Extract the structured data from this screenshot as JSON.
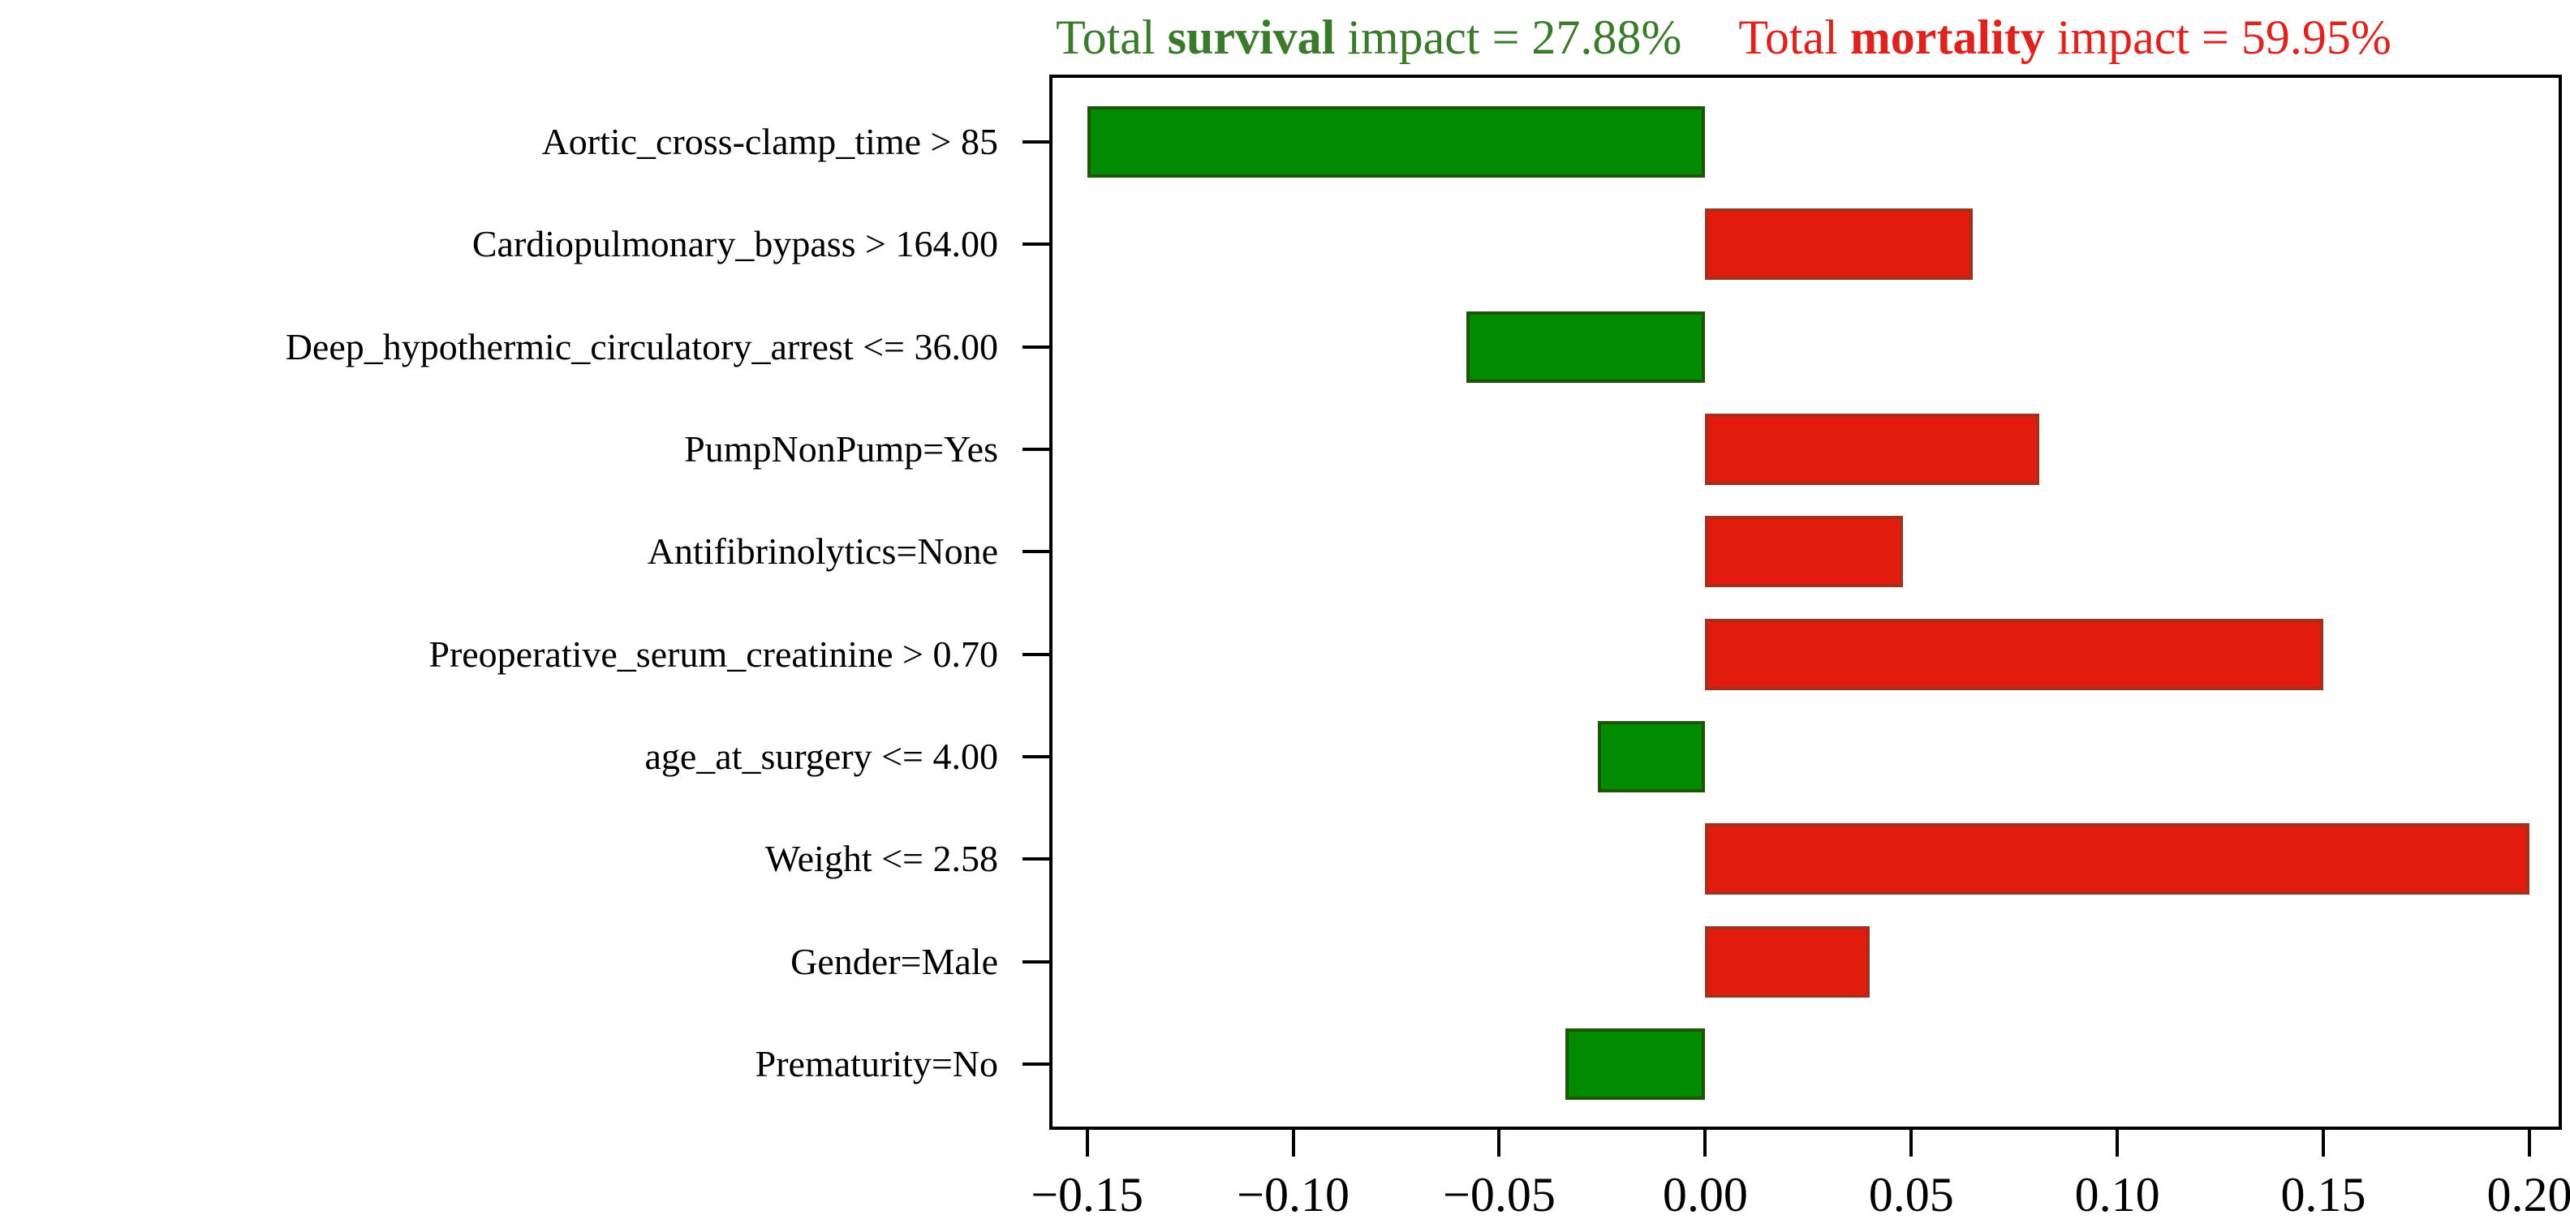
{
  "titles": {
    "survival": {
      "pre": "Total ",
      "word": "survival",
      "post": " impact = 27.88%"
    },
    "mortality": {
      "pre": "Total ",
      "word": "mortality",
      "post": " impact = 59.95%"
    }
  },
  "colors": {
    "survival_title": "#3A7A2B",
    "mortality_title": "#DE231E",
    "bar_negative_fill": "#008B00",
    "bar_negative_border": "#1E5407",
    "bar_positive_fill": "#E31B0C",
    "bar_positive_border": "#A1301F",
    "axis": "#000000"
  },
  "chart_data": {
    "type": "bar",
    "orientation": "horizontal",
    "title": "Total survival impact = 27.88%   Total mortality impact = 59.95%",
    "categories": [
      "Aortic_cross-clamp_time > 85",
      "Cardiopulmonary_bypass > 164.00",
      "Deep_hypothermic_circulatory_arrest <= 36.00",
      "PumpNonPump=Yes",
      "Antifibrinolytics=None",
      "Preoperative_serum_creatinine > 0.70",
      "age_at_surgery <= 4.00",
      "Weight <= 2.58",
      "Gender=Male",
      "Prematurity=No"
    ],
    "values": [
      -0.15,
      0.065,
      -0.058,
      0.081,
      0.048,
      0.15,
      -0.026,
      0.2,
      0.04,
      -0.034
    ],
    "value_signs_meaning": {
      "negative": "survival impact (green)",
      "positive": "mortality impact (red)"
    },
    "xlabel": "",
    "ylabel": "",
    "xlim": [
      -0.1584,
      0.2071
    ],
    "x_ticks": [
      -0.15,
      -0.1,
      -0.05,
      0.0,
      0.05,
      0.1,
      0.15,
      0.2
    ],
    "x_tick_labels": [
      "−0.15",
      "−0.10",
      "−0.05",
      "0.00",
      "0.05",
      "0.10",
      "0.15",
      "0.20"
    ],
    "grid": false,
    "legend": "none"
  }
}
